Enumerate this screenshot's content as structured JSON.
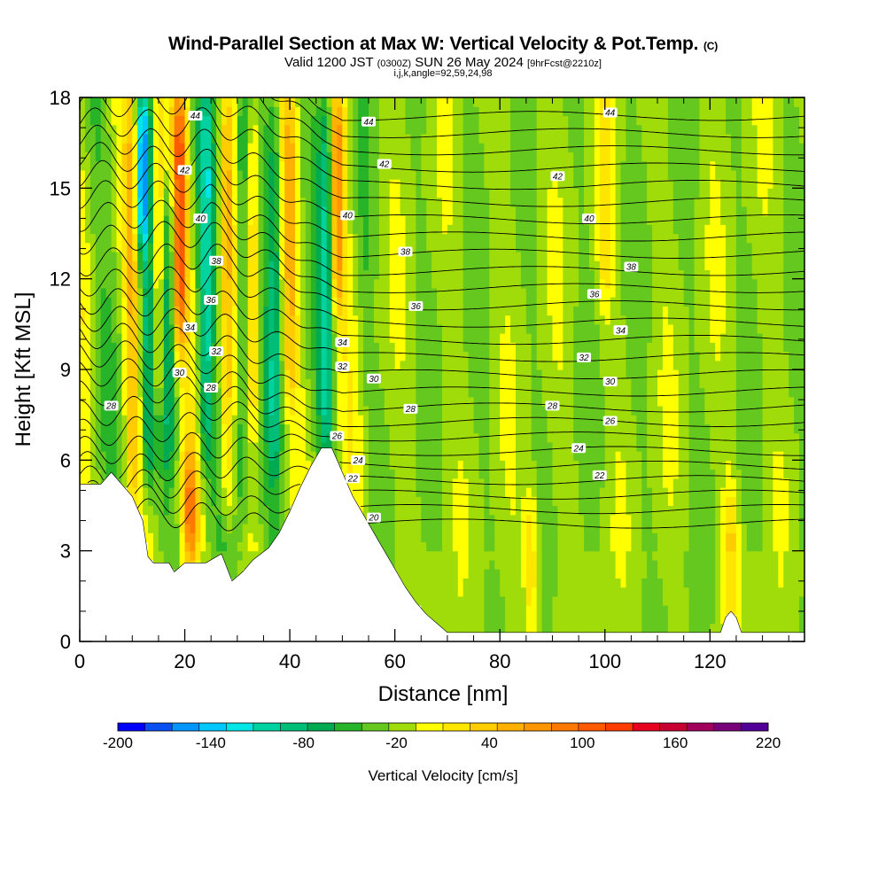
{
  "title": {
    "main": "Wind-Parallel Section at Max W: Vertical Velocity & Pot.Temp.",
    "copyright": "(C)",
    "valid_prefix": "Valid 1200 JST",
    "valid_utc": "(0300Z)",
    "valid_date": "SUN 26 May 2024",
    "forecast": "[9hrFcst@2210z]",
    "indices": "i,j,k,angle=92,59,24,98"
  },
  "chart_data": {
    "type": "heatmap",
    "xlabel": "Distance [nm]",
    "ylabel": "Height [Kft MSL]",
    "xlim": [
      0,
      138
    ],
    "ylim": [
      0,
      18
    ],
    "x_ticks": [
      0,
      20,
      40,
      60,
      80,
      100,
      120
    ],
    "y_ticks": [
      0,
      3,
      6,
      9,
      12,
      15,
      18
    ],
    "colorbar": {
      "label": "Vertical Velocity [cm/s]",
      "min": -200,
      "max": 220,
      "step": 20,
      "tick_labels": [
        -200,
        -140,
        -80,
        -20,
        40,
        100,
        160,
        220
      ],
      "colors": [
        "#0000ff",
        "#0a50f0",
        "#0096ff",
        "#00c8ff",
        "#00e6e6",
        "#00d2a0",
        "#00be78",
        "#00aa50",
        "#28b428",
        "#64c81e",
        "#a0dc0a",
        "#ffff00",
        "#ffe600",
        "#ffcc00",
        "#ffb000",
        "#ff9600",
        "#ff7800",
        "#ff5a00",
        "#ff3c00",
        "#e6001e",
        "#c80032",
        "#a0005a",
        "#780078",
        "#500096"
      ]
    },
    "terrain_kft": [
      [
        0,
        5.2
      ],
      [
        4,
        5.2
      ],
      [
        6,
        5.6
      ],
      [
        8,
        5.2
      ],
      [
        10,
        4.8
      ],
      [
        12,
        4.0
      ],
      [
        13,
        2.8
      ],
      [
        14,
        2.6
      ],
      [
        17,
        2.6
      ],
      [
        18,
        2.3
      ],
      [
        20,
        2.6
      ],
      [
        24,
        2.6
      ],
      [
        27,
        2.9
      ],
      [
        29,
        2.0
      ],
      [
        31,
        2.3
      ],
      [
        33,
        2.7
      ],
      [
        36,
        3.1
      ],
      [
        38,
        3.6
      ],
      [
        40,
        4.3
      ],
      [
        42,
        5.1
      ],
      [
        44,
        5.8
      ],
      [
        46,
        6.4
      ],
      [
        48,
        6.4
      ],
      [
        50,
        5.6
      ],
      [
        52,
        4.8
      ],
      [
        54,
        4.2
      ],
      [
        56,
        3.6
      ],
      [
        58,
        3.0
      ],
      [
        60,
        2.4
      ],
      [
        62,
        1.8
      ],
      [
        64,
        1.3
      ],
      [
        66,
        0.9
      ],
      [
        68,
        0.6
      ],
      [
        70,
        0.3
      ],
      [
        80,
        0.3
      ],
      [
        100,
        0.3
      ],
      [
        122,
        0.3
      ],
      [
        123,
        0.8
      ],
      [
        124,
        1.0
      ],
      [
        125,
        0.8
      ],
      [
        126,
        0.3
      ],
      [
        138,
        0.3
      ]
    ],
    "theta_label_unit": "deg C-like (pot.temp. contour labels)",
    "theta_contours": [
      {
        "level": 20,
        "labels": [
          [
            56,
            4.1
          ]
        ]
      },
      {
        "level": 22,
        "labels": [
          [
            52,
            5.4
          ],
          [
            99,
            5.5
          ]
        ]
      },
      {
        "level": 24,
        "labels": [
          [
            53,
            6.0
          ],
          [
            95,
            6.4
          ]
        ]
      },
      {
        "level": 26,
        "labels": [
          [
            49,
            6.8
          ],
          [
            101,
            7.3
          ]
        ]
      },
      {
        "level": 28,
        "labels": [
          [
            6,
            7.8
          ],
          [
            25,
            8.4
          ],
          [
            63,
            7.7
          ],
          [
            90,
            7.8
          ]
        ]
      },
      {
        "level": 30,
        "labels": [
          [
            19,
            8.9
          ],
          [
            56,
            8.7
          ],
          [
            101,
            8.6
          ]
        ]
      },
      {
        "level": 32,
        "labels": [
          [
            26,
            9.6
          ],
          [
            50,
            9.1
          ],
          [
            96,
            9.4
          ]
        ]
      },
      {
        "level": 34,
        "labels": [
          [
            21,
            10.4
          ],
          [
            50,
            9.9
          ],
          [
            103,
            10.3
          ]
        ]
      },
      {
        "level": 36,
        "labels": [
          [
            25,
            11.3
          ],
          [
            64,
            11.1
          ],
          [
            98,
            11.5
          ]
        ]
      },
      {
        "level": 38,
        "labels": [
          [
            26,
            12.6
          ],
          [
            62,
            12.9
          ],
          [
            105,
            12.4
          ]
        ]
      },
      {
        "level": 40,
        "labels": [
          [
            23,
            14.0
          ],
          [
            51,
            14.1
          ],
          [
            97,
            14.0
          ]
        ]
      },
      {
        "level": 42,
        "labels": [
          [
            20,
            15.6
          ],
          [
            58,
            15.8
          ],
          [
            91,
            15.4
          ]
        ]
      },
      {
        "level": 44,
        "labels": [
          [
            22,
            17.4
          ],
          [
            55,
            17.2
          ],
          [
            101,
            17.5
          ]
        ]
      }
    ],
    "updraft_cores_cms": [
      {
        "x": 10,
        "ztop": 18,
        "zbot": 5,
        "w": 60
      },
      {
        "x": 15,
        "ztop": 18,
        "zbot": 8,
        "w": 80
      },
      {
        "x": 19,
        "ztop": 18,
        "zbot": 10,
        "w": 140
      },
      {
        "x": 21,
        "ztop": 6,
        "zbot": 2.6,
        "w": 120
      },
      {
        "x": 28,
        "ztop": 18,
        "zbot": 4,
        "w": 60
      },
      {
        "x": 33,
        "ztop": 18,
        "zbot": 7,
        "w": 60
      },
      {
        "x": 40,
        "ztop": 18,
        "zbot": 8,
        "w": 60
      },
      {
        "x": 49,
        "ztop": 18,
        "zbot": 11,
        "w": 100
      },
      {
        "x": 86,
        "ztop": 5,
        "zbot": 0.5,
        "w": 60
      },
      {
        "x": 100,
        "ztop": 18,
        "zbot": 11,
        "w": 40
      },
      {
        "x": 124,
        "ztop": 5,
        "zbot": 1,
        "w": 60
      }
    ],
    "downdraft_cores_cms": [
      {
        "x": 12,
        "ztop": 18,
        "zbot": 13,
        "w": -180
      },
      {
        "x": 13,
        "ztop": 12,
        "zbot": 5,
        "w": -80
      },
      {
        "x": 17,
        "ztop": 15,
        "zbot": 6,
        "w": -60
      },
      {
        "x": 24,
        "ztop": 18,
        "zbot": 6,
        "w": -80
      },
      {
        "x": 31,
        "ztop": 18,
        "zbot": 4,
        "w": -60
      },
      {
        "x": 37,
        "ztop": 18,
        "zbot": 6,
        "w": -60
      },
      {
        "x": 47,
        "ztop": 18,
        "zbot": 6.5,
        "w": -80
      }
    ]
  }
}
